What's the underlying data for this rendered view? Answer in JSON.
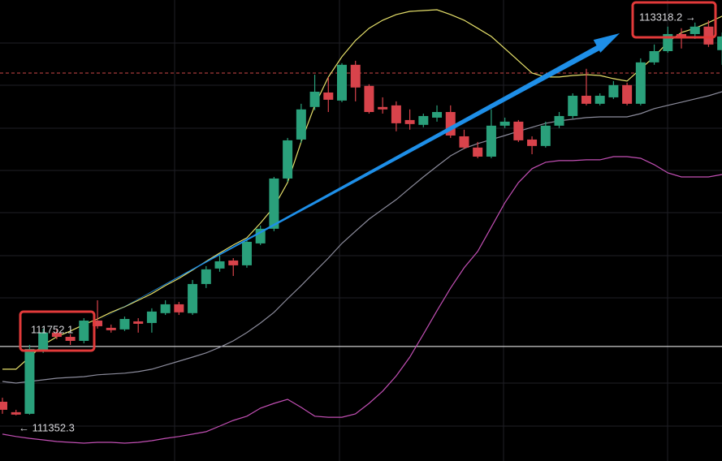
{
  "chart_data": {
    "type": "candlestick",
    "up_color": "#2aa07b",
    "down_color": "#d8434b",
    "open": [
      111420,
      111368,
      111360,
      111675,
      111764,
      111743,
      111723,
      111824,
      111788,
      111780,
      111820,
      111812,
      111861,
      111905,
      111861,
      112006,
      112083,
      112123,
      112099,
      112208,
      112281,
      112531,
      112725,
      112887,
      112959,
      112919,
      113097,
      112992,
      112887,
      112895,
      112822,
      112798,
      112834,
      112862,
      112741,
      112685,
      112640,
      112794,
      112814,
      112725,
      112693,
      112794,
      112842,
      112943,
      112903,
      112935,
      112996,
      112903,
      113109,
      113165,
      113250,
      113250,
      113287,
      113170
    ],
    "high": [
      111440,
      111380,
      111703,
      111784,
      111784,
      111756,
      111836,
      111925,
      111804,
      111844,
      111836,
      111885,
      111925,
      111917,
      112026,
      112095,
      112147,
      112135,
      112228,
      112297,
      112539,
      112733,
      112903,
      113048,
      113036,
      113105,
      113117,
      113000,
      112935,
      112915,
      112875,
      112854,
      112895,
      112895,
      112774,
      112713,
      112875,
      112834,
      112822,
      112741,
      112814,
      112862,
      112955,
      113077,
      112955,
      113016,
      113008,
      113129,
      113198,
      113287,
      113279,
      113307,
      113318.2,
      113258
    ],
    "low": [
      111360,
      111352.3,
      111356,
      111663,
      111731,
      111703,
      111711,
      111784,
      111764,
      111772,
      111764,
      111764,
      111852,
      111852,
      111852,
      111986,
      112067,
      112046,
      112087,
      112200,
      112269,
      112515,
      112709,
      112871,
      112862,
      112911,
      112915,
      112854,
      112854,
      112766,
      112774,
      112786,
      112814,
      112733,
      112677,
      112632,
      112632,
      112782,
      112713,
      112652,
      112685,
      112782,
      112830,
      112895,
      112895,
      112927,
      112895,
      112895,
      113097,
      113157,
      113178,
      113226,
      113186,
      113097
    ],
    "close": [
      111380,
      111356,
      111683,
      111764,
      111743,
      111723,
      111824,
      111796,
      111776,
      111832,
      111808,
      111869,
      111905,
      111865,
      112006,
      112079,
      112119,
      112099,
      112216,
      112281,
      112531,
      112721,
      112875,
      112963,
      112923,
      113097,
      112984,
      112862,
      112875,
      112806,
      112802,
      112842,
      112862,
      112745,
      112685,
      112640,
      112794,
      112814,
      112721,
      112693,
      112794,
      112842,
      112943,
      112903,
      112943,
      112996,
      112903,
      113109,
      113165,
      113250,
      113238,
      113287,
      113198,
      113238
    ],
    "bands": [
      {
        "color": "#e6e06a",
        "values": [
          111582,
          111582,
          111642,
          111703,
          111743,
          111772,
          111804,
          111832,
          111865,
          111893,
          111925,
          111958,
          111998,
          112034,
          112075,
          112119,
          112160,
          112200,
          112236,
          112309,
          112390,
          112511,
          112713,
          112895,
          113036,
          113137,
          113218,
          113279,
          113319,
          113347,
          113363,
          113367,
          113371,
          113347,
          113319,
          113279,
          113238,
          113178,
          113117,
          113056,
          113036,
          113036,
          113044,
          113048,
          113044,
          113028,
          113016,
          113077,
          113137,
          113210,
          113258,
          113279,
          113307,
          113339
        ]
      },
      {
        "color": "#8c8c9c",
        "values": [
          111521,
          111513,
          111521,
          111529,
          111537,
          111541,
          111545,
          111554,
          111558,
          111562,
          111570,
          111582,
          111602,
          111622,
          111642,
          111663,
          111691,
          111723,
          111764,
          111812,
          111865,
          111933,
          111998,
          112067,
          112135,
          112208,
          112269,
          112329,
          112378,
          112426,
          112483,
          112539,
          112592,
          112644,
          112681,
          112705,
          112725,
          112745,
          112766,
          112786,
          112806,
          112818,
          112826,
          112834,
          112838,
          112838,
          112838,
          112854,
          112879,
          112895,
          112911,
          112927,
          112943,
          112963
        ]
      },
      {
        "color": "#c24fb4",
        "values": [
          111259,
          111247,
          111238,
          111230,
          111222,
          111218,
          111214,
          111218,
          111218,
          111214,
          111218,
          111226,
          111238,
          111247,
          111259,
          111271,
          111299,
          111327,
          111348,
          111388,
          111412,
          111432,
          111392,
          111348,
          111343,
          111343,
          111360,
          111412,
          111473,
          111549,
          111642,
          111756,
          111873,
          111986,
          112087,
          112168,
          112289,
          112410,
          112511,
          112580,
          112612,
          112620,
          112620,
          112624,
          112624,
          112640,
          112640,
          112632,
          112600,
          112559,
          112539,
          112539,
          112539,
          112551
        ]
      }
    ],
    "price_lines": [
      {
        "value": 111695,
        "color": "#ffffff",
        "dashed": false
      },
      {
        "value": 113056,
        "color": "#d04848",
        "dashed": true
      }
    ],
    "annotations": [
      "111752.1",
      "113318.2 →",
      "← 111352.3"
    ]
  }
}
